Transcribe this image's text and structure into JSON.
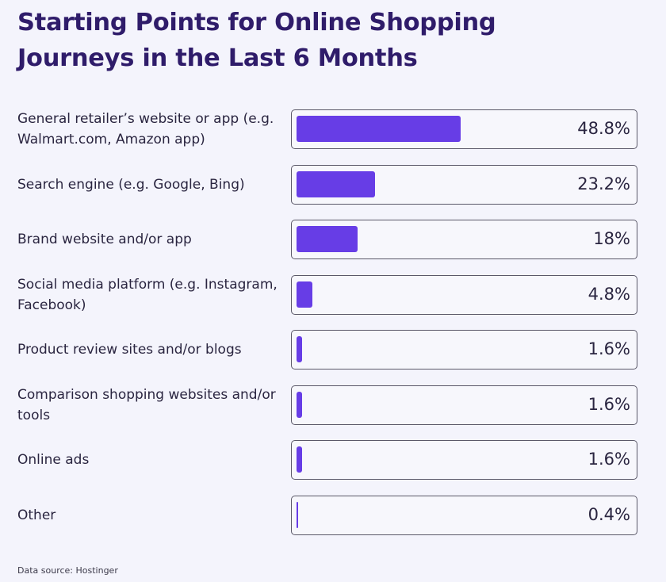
{
  "chart_data": {
    "type": "bar",
    "orientation": "horizontal",
    "title": "Starting Points for Online Shopping Journeys in the Last 6 Months",
    "categories": [
      "General retailer’s website or app (e.g. Walmart.com, Amazon app)",
      "Search engine (e.g. Google, Bing)",
      "Brand website and/or app",
      "Social media platform (e.g. Instagram, Facebook)",
      "Product review sites and/or blogs",
      "Comparison shopping websites and/or tools",
      "Online ads",
      "Other"
    ],
    "values": [
      48.8,
      23.2,
      18,
      4.8,
      1.6,
      1.6,
      1.6,
      0.4
    ],
    "value_labels": [
      "48.8%",
      "23.2%",
      "18%",
      "4.8%",
      "1.6%",
      "1.6%",
      "1.6%",
      "0.4%"
    ],
    "unit": "%",
    "xlim": [
      0,
      100
    ],
    "grid": false,
    "legend": "none",
    "bar_color": "#673de6",
    "source": "Data source: Hostinger"
  }
}
